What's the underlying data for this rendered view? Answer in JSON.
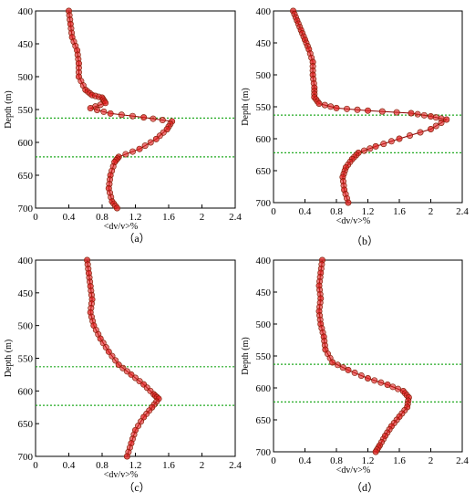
{
  "chart_data": [
    {
      "type": "scatter",
      "panel_label": "（a）",
      "xlabel": "<dv/v>%",
      "ylabel": "Depth (m)",
      "xlim": [
        0,
        2.4
      ],
      "ylim": [
        400,
        700
      ],
      "y_inverted": true,
      "xticks": [
        "0",
        "0.4",
        "0.8",
        "1.2",
        "1.6",
        "2",
        "2.4"
      ],
      "yticks": [
        "400",
        "450",
        "500",
        "550",
        "600",
        "650",
        "700"
      ],
      "marker_color": "#e02020",
      "line_color": "#8b0000",
      "reference_lines": [
        563,
        622
      ],
      "reference_line_color": "#22aa22",
      "points": [
        [
          0.4,
          400
        ],
        [
          0.42,
          420
        ],
        [
          0.44,
          440
        ],
        [
          0.5,
          460
        ],
        [
          0.52,
          480
        ],
        [
          0.52,
          500
        ],
        [
          0.6,
          520
        ],
        [
          0.68,
          528
        ],
        [
          0.8,
          532
        ],
        [
          0.84,
          540
        ],
        [
          0.66,
          548
        ],
        [
          0.9,
          556
        ],
        [
          1.3,
          562
        ],
        [
          1.64,
          568
        ],
        [
          1.58,
          580
        ],
        [
          1.45,
          595
        ],
        [
          1.25,
          610
        ],
        [
          1.0,
          622
        ],
        [
          0.95,
          630
        ],
        [
          0.9,
          650
        ],
        [
          0.88,
          670
        ],
        [
          0.92,
          690
        ],
        [
          0.98,
          700
        ]
      ]
    },
    {
      "type": "scatter",
      "panel_label": "（b）",
      "xlabel": "<dv/v>%",
      "ylabel": "Depth (m)",
      "xlim": [
        0,
        2.4
      ],
      "ylim": [
        400,
        700
      ],
      "y_inverted": true,
      "xticks": [
        "0",
        "0.4",
        "0.8",
        "1.2",
        "1.6",
        "2",
        "2.4"
      ],
      "yticks": [
        "400",
        "450",
        "500",
        "550",
        "600",
        "650",
        "700"
      ],
      "marker_color": "#e02020",
      "line_color": "#8b0000",
      "reference_lines": [
        563,
        622
      ],
      "reference_line_color": "#22aa22",
      "points": [
        [
          0.25,
          400
        ],
        [
          0.3,
          415
        ],
        [
          0.35,
          430
        ],
        [
          0.4,
          445
        ],
        [
          0.45,
          460
        ],
        [
          0.5,
          480
        ],
        [
          0.5,
          500
        ],
        [
          0.52,
          520
        ],
        [
          0.52,
          535
        ],
        [
          0.58,
          545
        ],
        [
          0.8,
          552
        ],
        [
          1.2,
          556
        ],
        [
          1.75,
          560
        ],
        [
          2.0,
          565
        ],
        [
          2.2,
          570
        ],
        [
          2.0,
          585
        ],
        [
          1.6,
          600
        ],
        [
          1.3,
          612
        ],
        [
          1.08,
          622
        ],
        [
          1.0,
          632
        ],
        [
          0.92,
          645
        ],
        [
          0.88,
          660
        ],
        [
          0.9,
          680
        ],
        [
          0.95,
          700
        ]
      ]
    },
    {
      "type": "scatter",
      "panel_label": "（c）",
      "xlabel": "<dv/v>%",
      "ylabel": "Depth (m)",
      "xlim": [
        0,
        2.4
      ],
      "ylim": [
        400,
        700
      ],
      "y_inverted": true,
      "xticks": [
        "0",
        "0.4",
        "0.8",
        "1.2",
        "1.6",
        "2",
        "2.4"
      ],
      "yticks": [
        "400",
        "450",
        "500",
        "550",
        "600",
        "650",
        "700"
      ],
      "marker_color": "#e02020",
      "line_color": "#8b0000",
      "reference_lines": [
        563,
        622
      ],
      "reference_line_color": "#22aa22",
      "points": [
        [
          0.62,
          400
        ],
        [
          0.64,
          420
        ],
        [
          0.66,
          440
        ],
        [
          0.68,
          460
        ],
        [
          0.66,
          480
        ],
        [
          0.7,
          500
        ],
        [
          0.78,
          520
        ],
        [
          0.88,
          540
        ],
        [
          1.0,
          560
        ],
        [
          1.15,
          575
        ],
        [
          1.3,
          590
        ],
        [
          1.42,
          605
        ],
        [
          1.48,
          612
        ],
        [
          1.4,
          625
        ],
        [
          1.3,
          640
        ],
        [
          1.2,
          660
        ],
        [
          1.15,
          680
        ],
        [
          1.1,
          700
        ]
      ]
    },
    {
      "type": "scatter",
      "panel_label": "（d）",
      "xlabel": "<dv/v>%",
      "ylabel": "Depth (m)",
      "xlim": [
        0,
        2.4
      ],
      "ylim": [
        400,
        700
      ],
      "y_inverted": true,
      "xticks": [
        "0",
        "0.4",
        "0.8",
        "1.2",
        "1.6",
        "2",
        "2.4"
      ],
      "yticks": [
        "400",
        "450",
        "500",
        "550",
        "600",
        "650",
        "700"
      ],
      "marker_color": "#e02020",
      "line_color": "#8b0000",
      "reference_lines": [
        563,
        622
      ],
      "reference_line_color": "#22aa22",
      "points": [
        [
          0.62,
          400
        ],
        [
          0.6,
          420
        ],
        [
          0.58,
          440
        ],
        [
          0.6,
          460
        ],
        [
          0.58,
          480
        ],
        [
          0.6,
          500
        ],
        [
          0.64,
          520
        ],
        [
          0.66,
          540
        ],
        [
          0.75,
          560
        ],
        [
          0.95,
          572
        ],
        [
          1.2,
          585
        ],
        [
          1.45,
          595
        ],
        [
          1.65,
          605
        ],
        [
          1.72,
          615
        ],
        [
          1.7,
          630
        ],
        [
          1.6,
          645
        ],
        [
          1.5,
          660
        ],
        [
          1.42,
          675
        ],
        [
          1.35,
          690
        ],
        [
          1.3,
          700
        ]
      ]
    }
  ]
}
